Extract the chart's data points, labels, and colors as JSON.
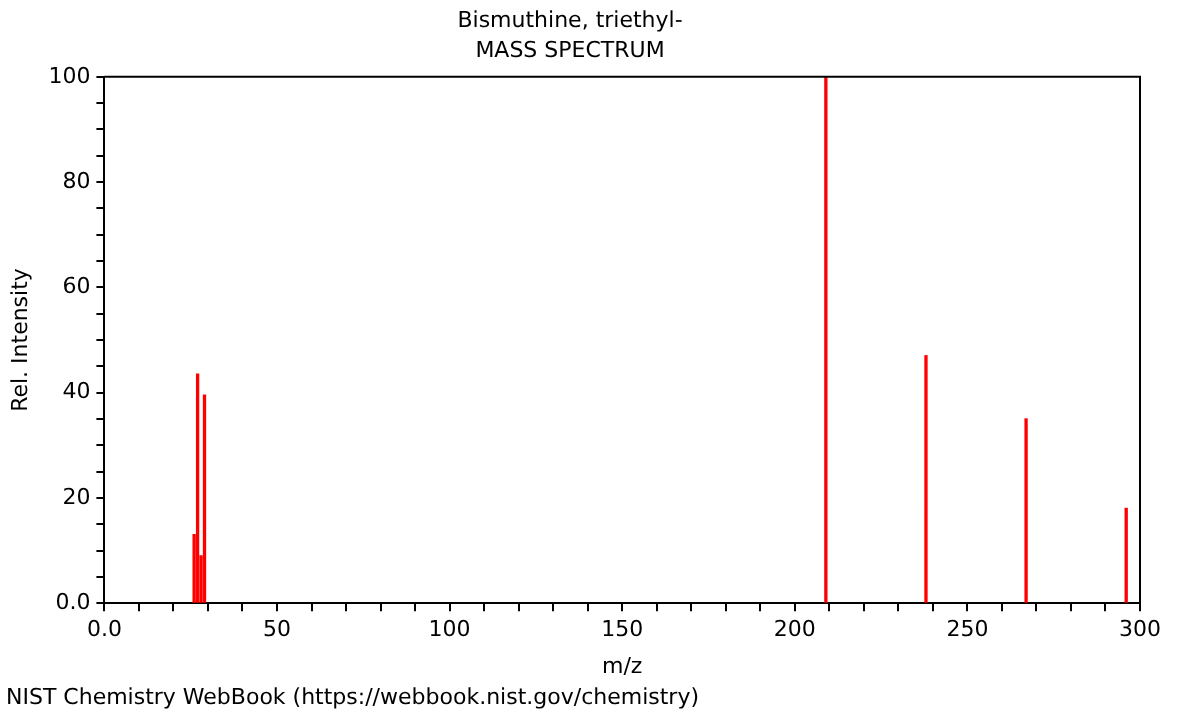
{
  "chart_data": {
    "type": "bar",
    "title": "Bismuthine, triethyl-",
    "subtitle": "MASS SPECTRUM",
    "xlabel": "m/z",
    "ylabel": "Rel. Intensity",
    "x": [
      26,
      27,
      28,
      29,
      209,
      238,
      267,
      296
    ],
    "values": [
      13,
      43.5,
      9,
      39.5,
      100,
      47,
      35,
      18
    ],
    "color": "#ff0000",
    "xlim": [
      0,
      300
    ],
    "xticks": [
      {
        "value": 0,
        "label": "0.0"
      },
      {
        "value": 10,
        "label": null
      },
      {
        "value": 20,
        "label": null
      },
      {
        "value": 30,
        "label": null
      },
      {
        "value": 40,
        "label": null
      },
      50,
      {
        "value": 60,
        "label": null
      },
      {
        "value": 70,
        "label": null
      },
      {
        "value": 80,
        "label": null
      },
      {
        "value": 90,
        "label": null
      },
      100,
      {
        "value": 110,
        "label": null
      },
      {
        "value": 120,
        "label": null
      },
      {
        "value": 130,
        "label": null
      },
      {
        "value": 140,
        "label": null
      },
      150,
      {
        "value": 160,
        "label": null
      },
      {
        "value": 170,
        "label": null
      },
      {
        "value": 180,
        "label": null
      },
      {
        "value": 190,
        "label": null
      },
      200,
      {
        "value": 210,
        "label": null
      },
      {
        "value": 220,
        "label": null
      },
      {
        "value": 230,
        "label": null
      },
      {
        "value": 240,
        "label": null
      },
      250,
      {
        "value": 260,
        "label": null
      },
      {
        "value": 270,
        "label": null
      },
      {
        "value": 280,
        "label": null
      },
      {
        "value": 290,
        "label": null
      },
      300
    ],
    "ylim": [
      0,
      100
    ],
    "yticks": [
      {
        "value": 0,
        "label": "0.0"
      },
      {
        "value": 5,
        "label": null
      },
      {
        "value": 10,
        "label": null
      },
      {
        "value": 15,
        "label": null
      },
      20,
      {
        "value": 25,
        "label": null
      },
      {
        "value": 30,
        "label": null
      },
      {
        "value": 35,
        "label": null
      },
      40,
      {
        "value": 45,
        "label": null
      },
      {
        "value": 50,
        "label": null
      },
      {
        "value": 55,
        "label": null
      },
      60,
      {
        "value": 65,
        "label": null
      },
      {
        "value": 70,
        "label": null
      },
      {
        "value": 75,
        "label": null
      },
      80,
      {
        "value": 85,
        "label": null
      },
      {
        "value": 90,
        "label": null
      },
      {
        "value": 95,
        "label": null
      },
      100
    ],
    "grid": false,
    "legend": false,
    "annotations": [
      "NIST Chemistry WebBook (https://webbook.nist.gov/chemistry)"
    ]
  }
}
